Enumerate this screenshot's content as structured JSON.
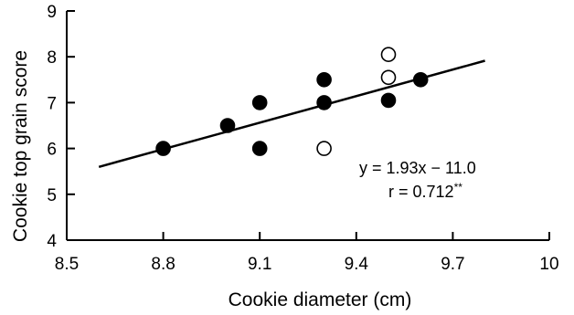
{
  "chart_data": {
    "type": "scatter",
    "title": "",
    "xlabel": "Cookie diameter (cm)",
    "ylabel": "Cookie top grain score",
    "xlim": [
      8.5,
      10
    ],
    "ylim": [
      4,
      9
    ],
    "xticks": [
      8.5,
      8.8,
      9.1,
      9.4,
      9.7,
      10
    ],
    "xtick_labels": [
      "8.5",
      "8.8",
      "9.1",
      "9.4",
      "9.7",
      "10"
    ],
    "yticks": [
      4,
      5,
      6,
      7,
      8,
      9
    ],
    "ytick_labels": [
      "4",
      "5",
      "6",
      "7",
      "8",
      "9"
    ],
    "grid": false,
    "series": [
      {
        "marker": "filled-circle",
        "color": "#000000",
        "points": [
          {
            "x": 8.8,
            "y": 6.0
          },
          {
            "x": 9.0,
            "y": 6.5
          },
          {
            "x": 9.1,
            "y": 7.0
          },
          {
            "x": 9.1,
            "y": 6.0
          },
          {
            "x": 9.3,
            "y": 7.5
          },
          {
            "x": 9.3,
            "y": 7.0
          },
          {
            "x": 9.5,
            "y": 7.05
          },
          {
            "x": 9.6,
            "y": 7.5
          }
        ]
      },
      {
        "marker": "open-circle",
        "color": "#000000",
        "points": [
          {
            "x": 9.3,
            "y": 6.0
          },
          {
            "x": 9.5,
            "y": 8.05
          },
          {
            "x": 9.5,
            "y": 7.55
          }
        ]
      }
    ],
    "trendline": {
      "slope": 1.93,
      "intercept": -11.0,
      "x_start": 8.6,
      "x_end": 9.8
    },
    "annotations": {
      "equation": "y = 1.93x − 11.0",
      "r_text": "r = 0.712",
      "r_sup": "**"
    }
  }
}
